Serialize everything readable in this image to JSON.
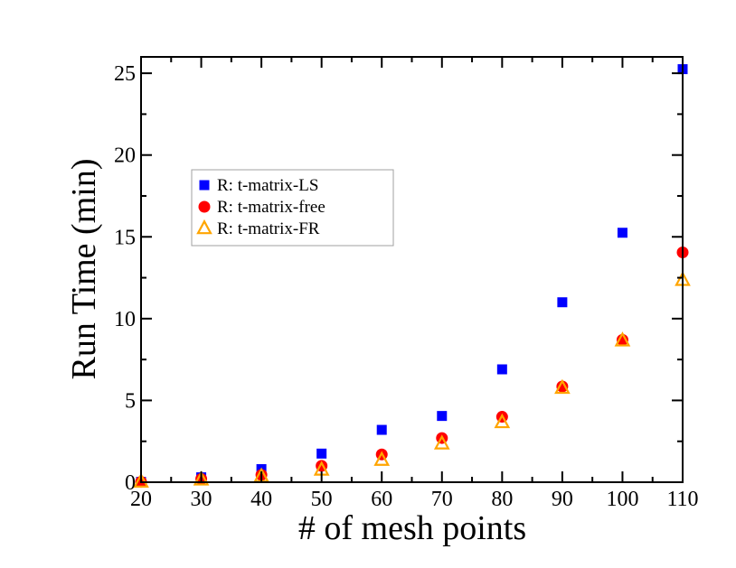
{
  "chart_data": {
    "type": "scatter",
    "title": "",
    "xlabel": "# of mesh points",
    "ylabel": "Run Time (min)",
    "xlim": [
      20,
      110
    ],
    "ylim": [
      0,
      26
    ],
    "x_ticks": [
      20,
      30,
      40,
      50,
      60,
      70,
      80,
      90,
      100,
      110
    ],
    "y_ticks": [
      0,
      5,
      10,
      15,
      20,
      25
    ],
    "grid": false,
    "legend_position": "upper-left",
    "x": [
      20,
      30,
      40,
      50,
      60,
      70,
      80,
      90,
      100,
      110
    ],
    "series": [
      {
        "name": "R: t-matrix-LS",
        "marker": "square",
        "color": "#0000ff",
        "values": [
          0.02,
          0.3,
          0.8,
          1.75,
          3.2,
          4.05,
          6.9,
          11.0,
          15.25,
          25.25
        ]
      },
      {
        "name": "R: t-matrix-free",
        "marker": "circle",
        "color": "#ff0000",
        "values": [
          0.02,
          0.2,
          0.45,
          1.0,
          1.7,
          2.7,
          4.0,
          5.85,
          8.7,
          14.05
        ]
      },
      {
        "name": "R: t-matrix-FR",
        "marker": "triangle",
        "color": "#ffa500",
        "values": [
          0.02,
          0.15,
          0.35,
          0.75,
          1.35,
          2.35,
          3.65,
          5.75,
          8.65,
          12.35
        ]
      }
    ]
  }
}
